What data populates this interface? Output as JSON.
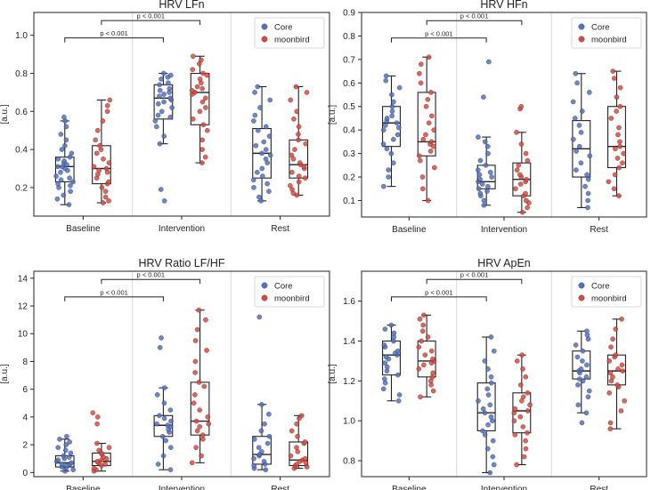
{
  "colors": {
    "core": "#4f73c9",
    "moonbird": "#e0483b",
    "box": "#222222",
    "divider": "#d9d9d9"
  },
  "chart_data": [
    {
      "type": "box",
      "title": "HRV LFn",
      "ylabel": "[a.u.]",
      "ylim": [
        0.05,
        1.12
      ],
      "yticks": [
        0.2,
        0.4,
        0.6,
        0.8,
        1.0
      ],
      "categories": [
        "Baseline",
        "Intervention",
        "Rest"
      ],
      "legend": [
        "Core",
        "moonbird"
      ],
      "legend_position": "top-right",
      "annotations": [
        "p < 0.001",
        "p < 0.001"
      ],
      "series": [
        {
          "name": "Core",
          "boxes": [
            {
              "whislo": 0.11,
              "q1": 0.23,
              "med": 0.31,
              "q3": 0.36,
              "whishi": 0.55,
              "points": [
                0.11,
                0.14,
                0.16,
                0.18,
                0.2,
                0.21,
                0.22,
                0.23,
                0.24,
                0.25,
                0.26,
                0.28,
                0.29,
                0.3,
                0.31,
                0.31,
                0.32,
                0.33,
                0.34,
                0.35,
                0.36,
                0.38,
                0.4,
                0.42,
                0.45,
                0.48,
                0.52,
                0.55,
                0.57
              ]
            },
            {
              "whislo": 0.43,
              "q1": 0.56,
              "med": 0.67,
              "q3": 0.74,
              "whishi": 0.8,
              "points": [
                0.13,
                0.19,
                0.43,
                0.47,
                0.52,
                0.55,
                0.57,
                0.58,
                0.6,
                0.62,
                0.64,
                0.65,
                0.66,
                0.67,
                0.68,
                0.69,
                0.7,
                0.71,
                0.72,
                0.74,
                0.75,
                0.77,
                0.78,
                0.79,
                0.8
              ]
            },
            {
              "whislo": 0.13,
              "q1": 0.25,
              "med": 0.38,
              "q3": 0.51,
              "whishi": 0.73,
              "points": [
                0.13,
                0.15,
                0.18,
                0.2,
                0.22,
                0.24,
                0.26,
                0.28,
                0.3,
                0.33,
                0.35,
                0.37,
                0.38,
                0.4,
                0.42,
                0.44,
                0.47,
                0.5,
                0.52,
                0.55,
                0.58,
                0.62,
                0.66,
                0.7,
                0.73
              ]
            }
          ]
        },
        {
          "name": "moonbird",
          "boxes": [
            {
              "whislo": 0.12,
              "q1": 0.22,
              "med": 0.3,
              "q3": 0.42,
              "whishi": 0.66,
              "points": [
                0.12,
                0.13,
                0.15,
                0.18,
                0.2,
                0.22,
                0.23,
                0.25,
                0.27,
                0.28,
                0.29,
                0.3,
                0.31,
                0.33,
                0.35,
                0.38,
                0.4,
                0.42,
                0.45,
                0.5,
                0.55,
                0.6,
                0.63,
                0.66
              ]
            },
            {
              "whislo": 0.33,
              "q1": 0.53,
              "med": 0.7,
              "q3": 0.8,
              "whishi": 0.89,
              "points": [
                0.33,
                0.36,
                0.4,
                0.45,
                0.5,
                0.53,
                0.56,
                0.6,
                0.62,
                0.65,
                0.67,
                0.69,
                0.7,
                0.71,
                0.72,
                0.73,
                0.75,
                0.77,
                0.79,
                0.8,
                0.82,
                0.85,
                0.87,
                0.89
              ]
            },
            {
              "whislo": 0.16,
              "q1": 0.25,
              "med": 0.32,
              "q3": 0.45,
              "whishi": 0.73,
              "points": [
                0.16,
                0.17,
                0.19,
                0.21,
                0.23,
                0.25,
                0.26,
                0.28,
                0.3,
                0.31,
                0.32,
                0.33,
                0.35,
                0.37,
                0.4,
                0.43,
                0.45,
                0.48,
                0.52,
                0.56,
                0.6,
                0.66,
                0.7,
                0.73
              ]
            }
          ]
        }
      ]
    },
    {
      "type": "box",
      "title": "HRV HFn",
      "ylabel": "[a.u.]",
      "ylim": [
        0.03,
        0.9
      ],
      "yticks": [
        0.1,
        0.2,
        0.3,
        0.4,
        0.5,
        0.6,
        0.7,
        0.8,
        0.9
      ],
      "categories": [
        "Baseline",
        "Intervention",
        "Rest"
      ],
      "legend": [
        "Core",
        "moonbird"
      ],
      "legend_position": "top-right",
      "annotations": [
        "p < 0.001",
        "p < 0.001"
      ],
      "series": [
        {
          "name": "Core",
          "boxes": [
            {
              "whislo": 0.16,
              "q1": 0.33,
              "med": 0.43,
              "q3": 0.5,
              "whishi": 0.63,
              "points": [
                0.16,
                0.2,
                0.23,
                0.26,
                0.3,
                0.32,
                0.34,
                0.36,
                0.38,
                0.4,
                0.41,
                0.42,
                0.43,
                0.44,
                0.45,
                0.46,
                0.48,
                0.5,
                0.52,
                0.55,
                0.58,
                0.61,
                0.63
              ]
            },
            {
              "whislo": 0.08,
              "q1": 0.15,
              "med": 0.18,
              "q3": 0.25,
              "whishi": 0.37,
              "points": [
                0.08,
                0.1,
                0.12,
                0.13,
                0.14,
                0.15,
                0.16,
                0.17,
                0.18,
                0.19,
                0.2,
                0.21,
                0.22,
                0.23,
                0.25,
                0.27,
                0.3,
                0.33,
                0.35,
                0.37,
                0.54,
                0.69
              ]
            },
            {
              "whislo": 0.07,
              "q1": 0.2,
              "med": 0.32,
              "q3": 0.44,
              "whishi": 0.64,
              "points": [
                0.07,
                0.1,
                0.13,
                0.16,
                0.19,
                0.21,
                0.23,
                0.26,
                0.29,
                0.31,
                0.33,
                0.36,
                0.39,
                0.42,
                0.45,
                0.48,
                0.52,
                0.56,
                0.6,
                0.64
              ]
            }
          ]
        },
        {
          "name": "moonbird",
          "boxes": [
            {
              "whislo": 0.1,
              "q1": 0.29,
              "med": 0.35,
              "q3": 0.56,
              "whishi": 0.71,
              "points": [
                0.1,
                0.15,
                0.2,
                0.24,
                0.27,
                0.29,
                0.31,
                0.33,
                0.34,
                0.35,
                0.36,
                0.38,
                0.4,
                0.43,
                0.46,
                0.5,
                0.53,
                0.56,
                0.6,
                0.64,
                0.68,
                0.71
              ]
            },
            {
              "whislo": 0.05,
              "q1": 0.12,
              "med": 0.19,
              "q3": 0.26,
              "whishi": 0.39,
              "points": [
                0.05,
                0.07,
                0.09,
                0.1,
                0.12,
                0.13,
                0.15,
                0.17,
                0.18,
                0.19,
                0.2,
                0.21,
                0.23,
                0.25,
                0.27,
                0.3,
                0.34,
                0.39,
                0.49,
                0.5
              ]
            },
            {
              "whislo": 0.12,
              "q1": 0.24,
              "med": 0.33,
              "q3": 0.5,
              "whishi": 0.65,
              "points": [
                0.12,
                0.15,
                0.18,
                0.21,
                0.24,
                0.26,
                0.28,
                0.3,
                0.32,
                0.33,
                0.35,
                0.38,
                0.41,
                0.45,
                0.48,
                0.5,
                0.54,
                0.58,
                0.62,
                0.65
              ]
            }
          ]
        }
      ]
    },
    {
      "type": "box",
      "title": "HRV Ratio LF/HF",
      "ylabel": "[a.u.]",
      "ylim": [
        -0.3,
        14.5
      ],
      "yticks": [
        0,
        2,
        4,
        6,
        8,
        10,
        12,
        14
      ],
      "categories": [
        "Baseline",
        "Intervention",
        "Rest"
      ],
      "legend": [
        "Core",
        "moonbird"
      ],
      "legend_position": "top-right",
      "annotations": [
        "p < 0.001",
        "p < 0.001"
      ],
      "series": [
        {
          "name": "Core",
          "boxes": [
            {
              "whislo": 0.1,
              "q1": 0.4,
              "med": 0.7,
              "q3": 1.2,
              "whishi": 2.4,
              "points": [
                0.1,
                0.2,
                0.3,
                0.4,
                0.5,
                0.6,
                0.6,
                0.7,
                0.8,
                0.9,
                1.0,
                1.1,
                1.2,
                1.4,
                1.6,
                1.8,
                2.0,
                2.2,
                2.4,
                2.6
              ]
            },
            {
              "whislo": 0.2,
              "q1": 2.6,
              "med": 3.4,
              "q3": 4.1,
              "whishi": 6.1,
              "points": [
                0.2,
                0.6,
                1.2,
                1.8,
                2.3,
                2.6,
                2.9,
                3.1,
                3.3,
                3.4,
                3.5,
                3.7,
                3.9,
                4.1,
                4.5,
                5.0,
                5.6,
                6.1,
                9.0,
                9.7
              ]
            },
            {
              "whislo": 0.2,
              "q1": 0.6,
              "med": 1.3,
              "q3": 2.6,
              "whishi": 4.9,
              "points": [
                0.2,
                0.3,
                0.5,
                0.6,
                0.8,
                1.0,
                1.2,
                1.3,
                1.5,
                1.8,
                2.1,
                2.4,
                2.6,
                3.0,
                3.5,
                4.2,
                4.9,
                11.2
              ]
            }
          ]
        },
        {
          "name": "moonbird",
          "boxes": [
            {
              "whislo": 0.1,
              "q1": 0.5,
              "med": 0.8,
              "q3": 1.4,
              "whishi": 2.1,
              "points": [
                0.1,
                0.2,
                0.3,
                0.5,
                0.6,
                0.7,
                0.8,
                0.9,
                1.0,
                1.1,
                1.3,
                1.4,
                1.6,
                1.8,
                2.1,
                3.5,
                4.0,
                4.3
              ]
            },
            {
              "whislo": 0.7,
              "q1": 2.7,
              "med": 3.7,
              "q3": 6.5,
              "whishi": 11.7,
              "points": [
                0.7,
                1.2,
                1.8,
                2.4,
                2.7,
                3.0,
                3.3,
                3.5,
                3.7,
                4.0,
                4.5,
                5.0,
                5.6,
                6.2,
                6.5,
                7.2,
                8.0,
                8.8,
                9.5,
                10.3,
                11.0,
                11.7
              ]
            },
            {
              "whislo": 0.3,
              "q1": 0.5,
              "med": 0.9,
              "q3": 2.2,
              "whishi": 4.1,
              "points": [
                0.3,
                0.4,
                0.5,
                0.6,
                0.7,
                0.8,
                0.9,
                1.0,
                1.2,
                1.5,
                1.8,
                2.1,
                2.2,
                2.6,
                3.0,
                3.5,
                3.9,
                4.1
              ]
            }
          ]
        }
      ]
    },
    {
      "type": "box",
      "title": "HRV ApEn",
      "ylabel": "[a.u.]",
      "ylim": [
        0.72,
        1.75
      ],
      "yticks": [
        0.8,
        1.0,
        1.2,
        1.4,
        1.6
      ],
      "categories": [
        "Baseline",
        "Intervention",
        "Rest"
      ],
      "legend": [
        "Core",
        "moonbird"
      ],
      "legend_position": "top-right",
      "annotations": [
        "p < 0.001",
        "p < 0.001"
      ],
      "series": [
        {
          "name": "Core",
          "boxes": [
            {
              "whislo": 1.1,
              "q1": 1.23,
              "med": 1.33,
              "q3": 1.4,
              "whishi": 1.48,
              "points": [
                1.1,
                1.13,
                1.16,
                1.19,
                1.21,
                1.23,
                1.25,
                1.27,
                1.29,
                1.31,
                1.32,
                1.33,
                1.34,
                1.35,
                1.37,
                1.38,
                1.4,
                1.42,
                1.44,
                1.46,
                1.48
              ]
            },
            {
              "whislo": 0.74,
              "q1": 0.95,
              "med": 1.04,
              "q3": 1.19,
              "whishi": 1.42,
              "points": [
                0.74,
                0.78,
                0.82,
                0.86,
                0.9,
                0.93,
                0.95,
                0.98,
                1.0,
                1.02,
                1.04,
                1.06,
                1.08,
                1.1,
                1.13,
                1.16,
                1.19,
                1.22,
                1.26,
                1.3,
                1.35,
                1.42
              ]
            },
            {
              "whislo": 1.04,
              "q1": 1.21,
              "med": 1.25,
              "q3": 1.35,
              "whishi": 1.45,
              "points": [
                0.99,
                1.04,
                1.08,
                1.12,
                1.15,
                1.18,
                1.2,
                1.21,
                1.22,
                1.24,
                1.25,
                1.26,
                1.28,
                1.3,
                1.32,
                1.35,
                1.38,
                1.41,
                1.43,
                1.45
              ]
            }
          ]
        },
        {
          "name": "moonbird",
          "boxes": [
            {
              "whislo": 1.12,
              "q1": 1.22,
              "med": 1.3,
              "q3": 1.4,
              "whishi": 1.53,
              "points": [
                1.12,
                1.15,
                1.18,
                1.2,
                1.22,
                1.24,
                1.26,
                1.28,
                1.29,
                1.3,
                1.31,
                1.33,
                1.35,
                1.37,
                1.4,
                1.42,
                1.45,
                1.48,
                1.51,
                1.53
              ]
            },
            {
              "whislo": 0.78,
              "q1": 0.94,
              "med": 1.05,
              "q3": 1.14,
              "whishi": 1.33,
              "points": [
                0.78,
                0.82,
                0.86,
                0.9,
                0.93,
                0.94,
                0.97,
                1.0,
                1.02,
                1.04,
                1.05,
                1.06,
                1.08,
                1.1,
                1.12,
                1.14,
                1.18,
                1.22,
                1.26,
                1.3,
                1.33
              ]
            },
            {
              "whislo": 0.96,
              "q1": 1.18,
              "med": 1.25,
              "q3": 1.33,
              "whishi": 1.51,
              "points": [
                0.96,
                0.99,
                1.05,
                1.1,
                1.14,
                1.17,
                1.18,
                1.2,
                1.22,
                1.24,
                1.25,
                1.26,
                1.28,
                1.3,
                1.32,
                1.33,
                1.37,
                1.41,
                1.46,
                1.51
              ]
            }
          ]
        }
      ]
    }
  ]
}
